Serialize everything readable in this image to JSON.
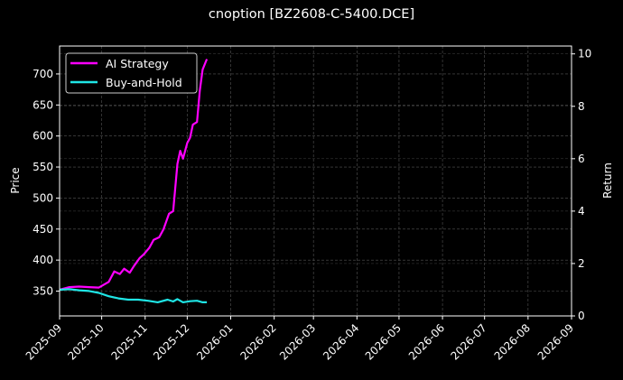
{
  "chart_data": {
    "type": "line",
    "title": "cnoption [BZ2608-C-5400.DCE]",
    "xlabel": "",
    "ylabel_left": "Price",
    "ylabel_right": "Return",
    "x_ticks": [
      "2025-09",
      "2025-10",
      "2025-11",
      "2025-12",
      "2026-01",
      "2026-02",
      "2026-03",
      "2026-04",
      "2026-05",
      "2026-06",
      "2026-07",
      "2026-08",
      "2026-09"
    ],
    "y_left_ticks": [
      350,
      400,
      450,
      500,
      550,
      600,
      650,
      700
    ],
    "y_right_ticks": [
      0,
      2,
      4,
      6,
      8,
      10
    ],
    "y_left_range": [
      310,
      745
    ],
    "y_right_range": [
      0,
      10.3
    ],
    "grid": true,
    "legend_position": "upper left",
    "series": [
      {
        "name": "AI Strategy",
        "color": "#ff00ff",
        "axis": "right",
        "x": [
          "2025-09-01",
          "2025-09-08",
          "2025-09-15",
          "2025-09-22",
          "2025-09-29",
          "2025-10-06",
          "2025-10-10",
          "2025-10-14",
          "2025-10-17",
          "2025-10-21",
          "2025-10-24",
          "2025-10-28",
          "2025-10-31",
          "2025-11-04",
          "2025-11-07",
          "2025-11-11",
          "2025-11-14",
          "2025-11-18",
          "2025-11-21",
          "2025-11-24",
          "2025-11-26",
          "2025-11-28",
          "2025-12-01",
          "2025-12-03",
          "2025-12-05",
          "2025-12-08",
          "2025-12-10",
          "2025-12-12",
          "2025-12-15"
        ],
        "values": [
          1.0,
          1.1,
          1.12,
          1.1,
          1.08,
          1.3,
          1.7,
          1.6,
          1.8,
          1.65,
          1.9,
          2.2,
          2.35,
          2.6,
          2.9,
          3.0,
          3.3,
          3.9,
          4.0,
          5.8,
          6.3,
          6.0,
          6.6,
          6.8,
          7.3,
          7.4,
          8.6,
          9.4,
          9.8
        ]
      },
      {
        "name": "Buy-and-Hold",
        "color": "#1fe5e5",
        "axis": "right",
        "x": [
          "2025-09-01",
          "2025-09-08",
          "2025-09-15",
          "2025-09-22",
          "2025-09-29",
          "2025-10-06",
          "2025-10-13",
          "2025-10-20",
          "2025-10-27",
          "2025-11-03",
          "2025-11-10",
          "2025-11-17",
          "2025-11-21",
          "2025-11-24",
          "2025-11-28",
          "2025-12-03",
          "2025-12-08",
          "2025-12-12",
          "2025-12-15"
        ],
        "values": [
          1.0,
          1.02,
          0.98,
          0.95,
          0.88,
          0.75,
          0.67,
          0.62,
          0.62,
          0.58,
          0.52,
          0.62,
          0.55,
          0.64,
          0.52,
          0.56,
          0.58,
          0.52,
          0.52
        ]
      }
    ]
  },
  "legend": {
    "items": [
      {
        "label": "AI Strategy",
        "color": "#ff00ff"
      },
      {
        "label": "Buy-and-Hold",
        "color": "#1fe5e5"
      }
    ]
  }
}
